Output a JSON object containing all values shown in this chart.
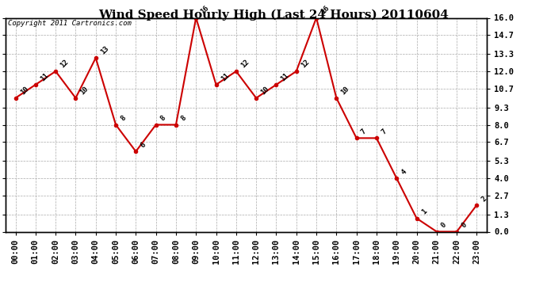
{
  "title": "Wind Speed Hourly High (Last 24 Hours) 20110604",
  "copyright": "Copyright 2011 Cartronics.com",
  "hours": [
    "00:00",
    "01:00",
    "02:00",
    "03:00",
    "04:00",
    "05:00",
    "06:00",
    "07:00",
    "08:00",
    "09:00",
    "10:00",
    "11:00",
    "12:00",
    "13:00",
    "14:00",
    "15:00",
    "16:00",
    "17:00",
    "18:00",
    "19:00",
    "20:00",
    "21:00",
    "22:00",
    "23:00"
  ],
  "values": [
    10,
    11,
    12,
    10,
    13,
    8,
    6,
    8,
    8,
    16,
    11,
    12,
    10,
    11,
    12,
    16,
    10,
    7,
    7,
    4,
    1,
    0,
    0,
    2
  ],
  "line_color": "#cc0000",
  "marker": "o",
  "marker_size": 3,
  "bg_color": "#ffffff",
  "plot_bg_color": "#ffffff",
  "grid_color": "#aaaaaa",
  "ylim": [
    0.0,
    16.0
  ],
  "yticks": [
    0.0,
    1.3,
    2.7,
    4.0,
    5.3,
    6.7,
    8.0,
    9.3,
    10.7,
    12.0,
    13.3,
    14.7,
    16.0
  ],
  "title_fontsize": 11,
  "copyright_fontsize": 6.5,
  "label_fontsize": 6.5,
  "tick_fontsize": 7.5,
  "annotation_rotation": 45
}
